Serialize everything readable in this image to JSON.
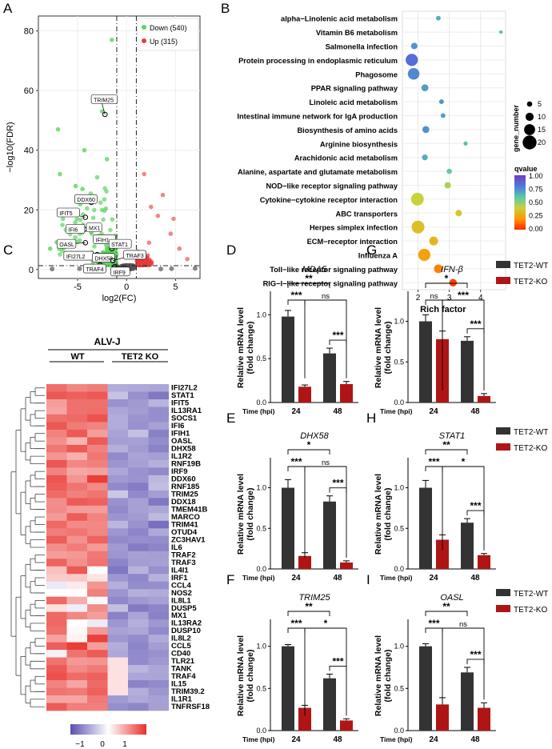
{
  "colors": {
    "down": "#5fd35f",
    "up": "#e63b3b",
    "ns_point": "#555555",
    "wt_bar": "#333333",
    "ko_bar": "#b01515",
    "heat_high": "#e8302a",
    "heat_mid": "#ffffff",
    "heat_low": "#5a4fb0"
  },
  "panels": {
    "A": "A",
    "B": "B",
    "C": "C",
    "D": "D",
    "E": "E",
    "F": "F",
    "G": "G",
    "H": "H",
    "I": "I"
  },
  "chart_data": [
    {
      "id": "A",
      "type": "scatter",
      "title": "",
      "xlabel": "log2(FC)",
      "ylabel": "−log10(FDR)",
      "xlim": [
        -9,
        7.5
      ],
      "ylim": [
        -3,
        85
      ],
      "xticks": [
        -5,
        0,
        5
      ],
      "yticks": [
        0,
        20,
        40,
        60,
        80
      ],
      "legend": [
        {
          "name": "Down (540)",
          "color": "#5fd35f"
        },
        {
          "name": "Up (315)",
          "color": "#e63b3b"
        }
      ],
      "vlines": [
        -1,
        1
      ],
      "hline": 1.3,
      "labeled_genes": [
        {
          "label": "TRIM25",
          "x": -2.2,
          "y": 52
        },
        {
          "label": "DDX60",
          "x": -3.6,
          "y": 22.5
        },
        {
          "label": "IFIT5",
          "x": -4.2,
          "y": 17.5
        },
        {
          "label": "IFI6",
          "x": -4.3,
          "y": 13.5
        },
        {
          "label": "MX1",
          "x": -3.3,
          "y": 13.8
        },
        {
          "label": "IFIH1",
          "x": -2.5,
          "y": 9.5
        },
        {
          "label": "OASL",
          "x": -4.2,
          "y": 9.0
        },
        {
          "label": "STAT1",
          "x": -1.5,
          "y": 7.0
        },
        {
          "label": "IFI27L2",
          "x": -3.0,
          "y": 5.0
        },
        {
          "label": "DHX58",
          "x": -2.0,
          "y": 4.5
        },
        {
          "label": "TRAF3",
          "x": -1.4,
          "y": 3.0
        },
        {
          "label": "TRAF4",
          "x": -2.7,
          "y": 1.5
        },
        {
          "label": "IRF9",
          "x": -1.2,
          "y": 1.0
        }
      ]
    },
    {
      "id": "B",
      "type": "scatter",
      "xlabel": "Rich factor",
      "xlim": [
        1.5,
        4.8
      ],
      "xticks": [
        2,
        3,
        4
      ],
      "size_legend_title": "gene_number",
      "size_legend": [
        5,
        10,
        15,
        20
      ],
      "color_legend_title": "qvalue",
      "color_ticks": [
        "1.00",
        "0.75",
        "0.50",
        "0.25",
        "0.00"
      ],
      "points": [
        {
          "pathway": "alpha−Linolenic acid metabolism",
          "rich": 2.65,
          "genes": 4,
          "q": 0.75
        },
        {
          "pathway": "Vitamin B6 metabolism",
          "rich": 4.65,
          "genes": 2,
          "q": 0.7
        },
        {
          "pathway": "Salmonella infection",
          "rich": 1.88,
          "genes": 7,
          "q": 0.8
        },
        {
          "pathway": "Protein processing in endoplasmic reticulum",
          "rich": 1.8,
          "genes": 17,
          "q": 0.88
        },
        {
          "pathway": "Phagosome",
          "rich": 1.86,
          "genes": 16,
          "q": 0.82
        },
        {
          "pathway": "PPAR signaling pathway",
          "rich": 2.22,
          "genes": 8,
          "q": 0.78
        },
        {
          "pathway": "Linoleic acid metabolism",
          "rich": 2.75,
          "genes": 4,
          "q": 0.8
        },
        {
          "pathway": "Intestinal immune network for IgA production",
          "rich": 2.8,
          "genes": 4,
          "q": 0.78
        },
        {
          "pathway": "Biosynthesis of amino acids",
          "rich": 2.25,
          "genes": 8,
          "q": 0.8
        },
        {
          "pathway": "Arginine biosynthesis",
          "rich": 3.52,
          "genes": 3,
          "q": 0.72
        },
        {
          "pathway": "Arachidonic acid metabolism",
          "rich": 2.22,
          "genes": 6,
          "q": 0.75
        },
        {
          "pathway": "Alanine, aspartate and glutamate metabolism",
          "rich": 3.0,
          "genes": 5,
          "q": 0.68
        },
        {
          "pathway": "NOD−like receptor signaling pathway",
          "rich": 2.95,
          "genes": 7,
          "q": 0.55
        },
        {
          "pathway": "Cytokine−cytokine receptor interaction",
          "rich": 1.98,
          "genes": 18,
          "q": 0.5
        },
        {
          "pathway": "ABC transporters",
          "rich": 3.3,
          "genes": 7,
          "q": 0.45
        },
        {
          "pathway": "Herpes simplex infection",
          "rich": 2.0,
          "genes": 18,
          "q": 0.42
        },
        {
          "pathway": "ECM−receptor interaction",
          "rich": 2.5,
          "genes": 11,
          "q": 0.38
        },
        {
          "pathway": "Influenza A",
          "rich": 2.2,
          "genes": 17,
          "q": 0.3
        },
        {
          "pathway": "Toll−like receptor signaling pathway",
          "rich": 2.65,
          "genes": 11,
          "q": 0.2
        },
        {
          "pathway": "RIG−I−like receptor signaling pathway",
          "rich": 3.12,
          "genes": 9,
          "q": 0.05
        }
      ]
    },
    {
      "id": "C",
      "type": "heatmap",
      "title": "ALV-J",
      "groups": [
        "WT",
        "TET2 KO"
      ],
      "colorbar_ticks": [
        "−1",
        "0",
        "1"
      ],
      "genes": [
        "IFI27L2",
        "STAT1",
        "IFIT5",
        "IL13RA1",
        "SOCS1",
        "IFI6",
        "IFIH1",
        "OASL",
        "DHX58",
        "IL1R2",
        "RNF19B",
        "IRF9",
        "DDX60",
        "RNF185",
        "TRIM25",
        "DDX18",
        "TMEM41B",
        "MARCO",
        "TRIM41",
        "OTUD4",
        "ZC3HAV1",
        "IL6",
        "TRAF2",
        "TRAF3",
        "IL4I1",
        "IRF1",
        "CCL4",
        "NOS2",
        "IL8L1",
        "DUSP5",
        "MX1",
        "IL13RA2",
        "DUSP10",
        "IL8L2",
        "CCL5",
        "CD40",
        "TLR21",
        "TANK",
        "TRAF4",
        "IL15",
        "TRIM39.2",
        "IL1R1",
        "TNFRSF18"
      ]
    },
    {
      "id": "D",
      "type": "bar",
      "title": "MDA5",
      "ylabel": "Relative mRNA level\n(fold change)",
      "xlabel": "Time (hpi)",
      "categories": [
        "24",
        "48"
      ],
      "ylim": [
        0,
        1.25
      ],
      "yticks": [
        "0.0",
        "0.5",
        "1.0"
      ],
      "series": [
        {
          "name": "TET2-WT",
          "values": [
            0.98,
            0.56
          ],
          "err": [
            0.07,
            0.06
          ]
        },
        {
          "name": "TET2-KO",
          "values": [
            0.18,
            0.21
          ],
          "err": [
            0.02,
            0.03
          ]
        }
      ],
      "sig": {
        "top": "**",
        "mid_left": "***",
        "mid_right": "ns",
        "right": "***"
      }
    },
    {
      "id": "E",
      "type": "bar",
      "title": "DHX58",
      "ylabel": "Relative mRNA level\n(fold change)",
      "xlabel": "Time (hpi)",
      "categories": [
        "24",
        "48"
      ],
      "ylim": [
        0,
        1.35
      ],
      "yticks": [
        "0.0",
        "0.5",
        "1.0"
      ],
      "series": [
        {
          "name": "TET2-WT",
          "values": [
            1.0,
            0.83
          ],
          "err": [
            0.1,
            0.07
          ]
        },
        {
          "name": "TET2-KO",
          "values": [
            0.16,
            0.08
          ],
          "err": [
            0.04,
            0.02
          ]
        }
      ],
      "sig": {
        "top": "*",
        "mid_left": "***",
        "mid_right": "ns",
        "right": "***"
      }
    },
    {
      "id": "F",
      "type": "bar",
      "title": "TRIM25",
      "ylabel": "Relative mRNA level\n(fold change)",
      "xlabel": "Time (hpi)",
      "categories": [
        "24",
        "48"
      ],
      "ylim": [
        0,
        1.3
      ],
      "yticks": [
        "0.0",
        "0.5",
        "1.0"
      ],
      "series": [
        {
          "name": "TET2-WT",
          "values": [
            1.0,
            0.62
          ],
          "err": [
            0.02,
            0.05
          ]
        },
        {
          "name": "TET2-KO",
          "values": [
            0.27,
            0.12
          ],
          "err": [
            0.03,
            0.02
          ]
        }
      ],
      "sig": {
        "top": "**",
        "mid_left": "***",
        "mid_right": "*",
        "right": "***"
      }
    },
    {
      "id": "G",
      "type": "bar",
      "title": "IFN-β",
      "ylabel": "Relative mRNA level\n(fold change)",
      "xlabel": "Time (hpi)",
      "categories": [
        "24",
        "48"
      ],
      "ylim": [
        0,
        1.35
      ],
      "yticks": [
        "0.0",
        "0.5",
        "1.0"
      ],
      "series": [
        {
          "name": "TET2-WT",
          "values": [
            1.0,
            0.76
          ],
          "err": [
            0.08,
            0.05
          ]
        },
        {
          "name": "TET2-KO",
          "values": [
            0.78,
            0.08
          ],
          "err": [
            0.1,
            0.03
          ]
        }
      ],
      "sig": {
        "top": "*",
        "mid_left": "ns",
        "mid_right": "***",
        "right": "***"
      },
      "legend": [
        "TET2-WT",
        "TET2-KO"
      ]
    },
    {
      "id": "H",
      "type": "bar",
      "title": "STAT1",
      "ylabel": "Relative mRNA level\n(fold change)",
      "xlabel": "Time (hpi)",
      "categories": [
        "24",
        "48"
      ],
      "ylim": [
        0,
        1.35
      ],
      "yticks": [
        "0.0",
        "0.5",
        "1.0"
      ],
      "series": [
        {
          "name": "TET2-WT",
          "values": [
            1.0,
            0.57
          ],
          "err": [
            0.09,
            0.05
          ]
        },
        {
          "name": "TET2-KO",
          "values": [
            0.36,
            0.17
          ],
          "err": [
            0.06,
            0.02
          ]
        }
      ],
      "sig": {
        "top": "**",
        "mid_left": "***",
        "mid_right": "*",
        "right": "***"
      },
      "legend": [
        "TET2-WT",
        "TET2-KO"
      ]
    },
    {
      "id": "I",
      "type": "bar",
      "title": "OASL",
      "ylabel": "Relative mRNA level\n(fold change)",
      "xlabel": "Time (hpi)",
      "categories": [
        "24",
        "48"
      ],
      "ylim": [
        0,
        1.3
      ],
      "yticks": [
        "0.0",
        "0.5",
        "1.0"
      ],
      "series": [
        {
          "name": "TET2-WT",
          "values": [
            1.0,
            0.69
          ],
          "err": [
            0.03,
            0.06
          ]
        },
        {
          "name": "TET2-KO",
          "values": [
            0.31,
            0.27
          ],
          "err": [
            0.08,
            0.06
          ]
        }
      ],
      "sig": {
        "top": "**",
        "mid_left": "***",
        "mid_right": "ns",
        "right": "***"
      },
      "legend": [
        "TET2-WT",
        "TET2-KO"
      ]
    }
  ]
}
